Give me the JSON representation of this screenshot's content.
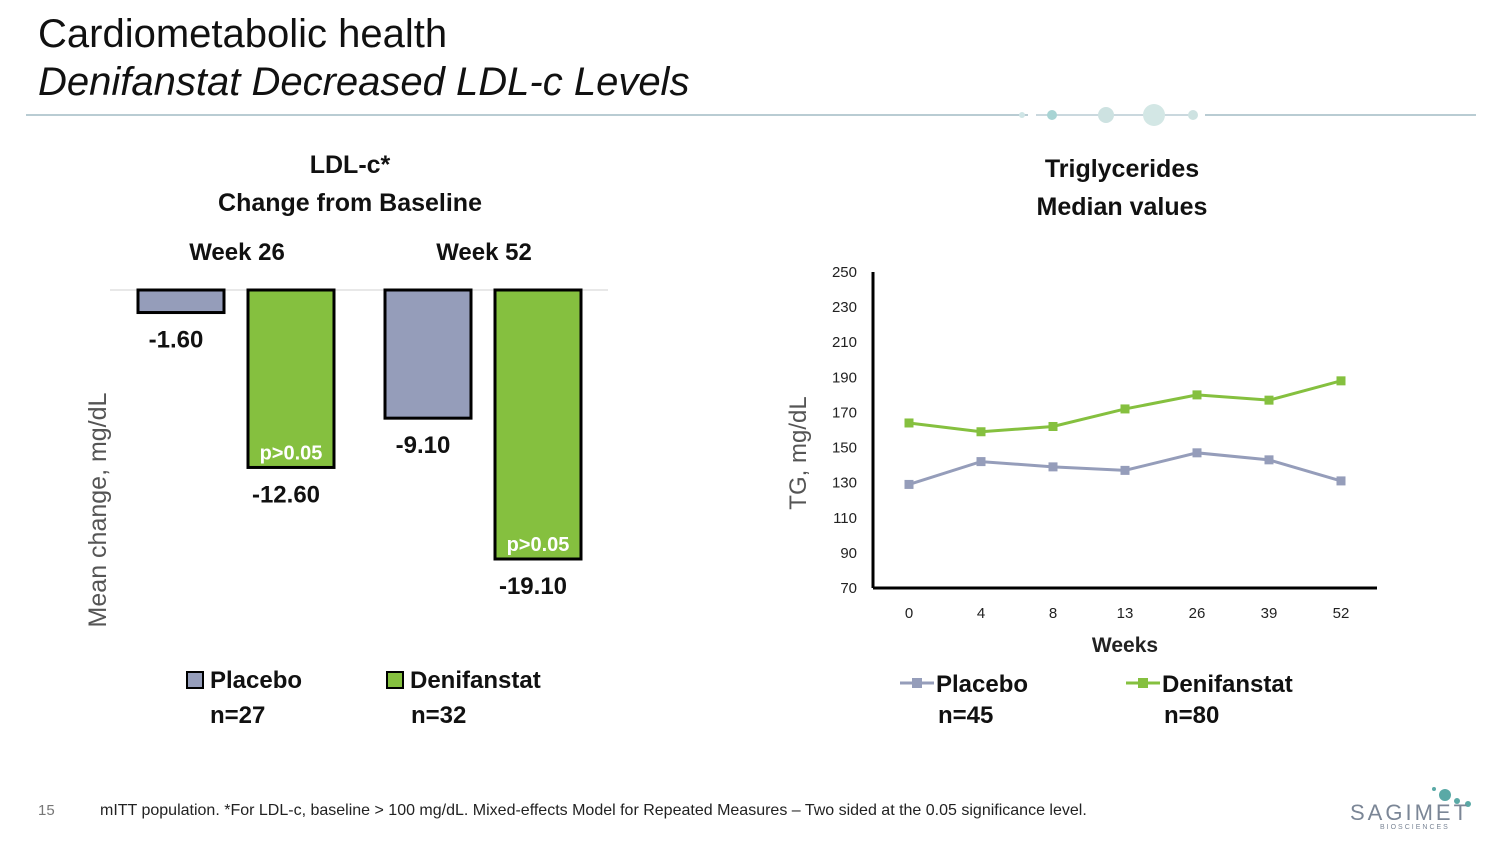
{
  "slide": {
    "title": "Cardiometabolic health",
    "subtitle": "Denifanstat Decreased LDL-c Levels",
    "page_number": "15",
    "footnote": "mITT population. *For LDL-c, baseline > 100 mg/dL. Mixed-effects Model for Repeated Measures – Two sided at the 0.05 significance level.",
    "logo_text": "SAGIMET",
    "logo_subtext": "BIOSCIENCES"
  },
  "colors": {
    "placebo": "#959dba",
    "denifanstat": "#85c03f",
    "rule": "#b9ccd3",
    "dots": "#cfe5e6"
  },
  "chart_data": [
    {
      "type": "bar",
      "title_line1": "LDL-c*",
      "title_line2": "Change from Baseline",
      "ylabel": "Mean change, mg/dL",
      "categories": [
        "Week 26",
        "Week 52"
      ],
      "series": [
        {
          "name": "Placebo",
          "n": "n=27",
          "values": [
            -1.6,
            -9.1
          ],
          "labels": [
            "-1.60",
            "-9.10"
          ],
          "pvalues": [
            "",
            ""
          ]
        },
        {
          "name": "Denifanstat",
          "n": "n=32",
          "values": [
            -12.6,
            -19.1
          ],
          "labels": [
            "-12.60",
            "-19.10"
          ],
          "pvalues": [
            "p>0.05",
            "p>0.05"
          ]
        }
      ],
      "ylim": [
        -19.1,
        0
      ]
    },
    {
      "type": "line",
      "title_line1": "Triglycerides",
      "title_line2": "Median values",
      "xlabel": "Weeks",
      "ylabel": "TG, mg/dL",
      "x": [
        "0",
        "4",
        "8",
        "13",
        "26",
        "39",
        "52"
      ],
      "yticks": [
        70,
        90,
        110,
        130,
        150,
        170,
        190,
        210,
        230,
        250
      ],
      "ylim": [
        70,
        250
      ],
      "series": [
        {
          "name": "Placebo",
          "n": "n=45",
          "values": [
            129,
            142,
            139,
            137,
            147,
            143,
            131
          ]
        },
        {
          "name": "Denifanstat",
          "n": "n=80",
          "values": [
            164,
            159,
            162,
            172,
            180,
            177,
            188
          ]
        }
      ]
    }
  ]
}
